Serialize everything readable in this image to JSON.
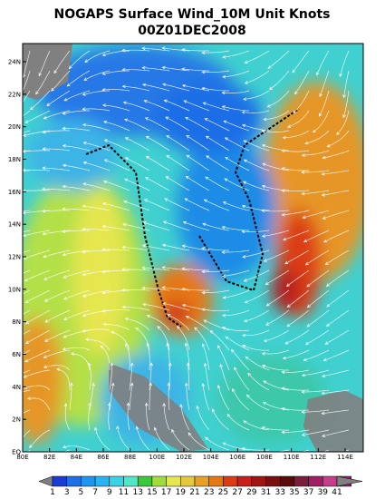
{
  "title": "NOGAPS Surface Wind_10M Unit Knots",
  "subtitle": "00Z01DEC2008",
  "x_axis": {
    "labels": [
      "80E",
      "82E",
      "84E",
      "86E",
      "88E",
      "100E",
      "102E",
      "104E",
      "106E",
      "108E",
      "110E",
      "112E",
      "114E"
    ]
  },
  "y_axis": {
    "labels": [
      "EQ",
      "2N",
      "4N",
      "6N",
      "8N",
      "10N",
      "12N",
      "14N",
      "16N",
      "18N",
      "20N",
      "22N",
      "24N"
    ]
  },
  "colorbar": {
    "labels": [
      1,
      3,
      5,
      7,
      9,
      11,
      13,
      15,
      17,
      19,
      21,
      23,
      25,
      27,
      29,
      31,
      33,
      35,
      37,
      39,
      41
    ],
    "colors": [
      "#808080",
      "#1a3cd4",
      "#1e6ee6",
      "#1e96f0",
      "#28b4f0",
      "#3cd2e6",
      "#50e6c8",
      "#3cc83c",
      "#a0dc3c",
      "#e6e650",
      "#e6c83c",
      "#e6a028",
      "#e67814",
      "#dc3c14",
      "#c81e1e",
      "#a01414",
      "#7a0f0f",
      "#5a0a0a",
      "#7a1e3c",
      "#a01e64",
      "#c83c8c",
      "#a01e78",
      "#808080"
    ]
  }
}
